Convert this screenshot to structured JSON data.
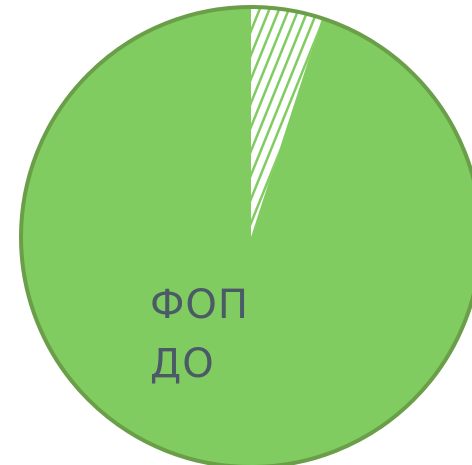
{
  "chart_data": {
    "type": "pie",
    "slices": [
      {
        "label_lines": [
          "ФОП",
          "ДО"
        ],
        "value": 95,
        "color": "#80cc60",
        "pattern": "solid"
      },
      {
        "label_lines": [],
        "value": 5,
        "color": "#ffffff",
        "pattern": "hatched"
      }
    ],
    "border_color": "#6a9e48",
    "hatch_color": "#80cc60",
    "start_angle_deg": 0
  }
}
